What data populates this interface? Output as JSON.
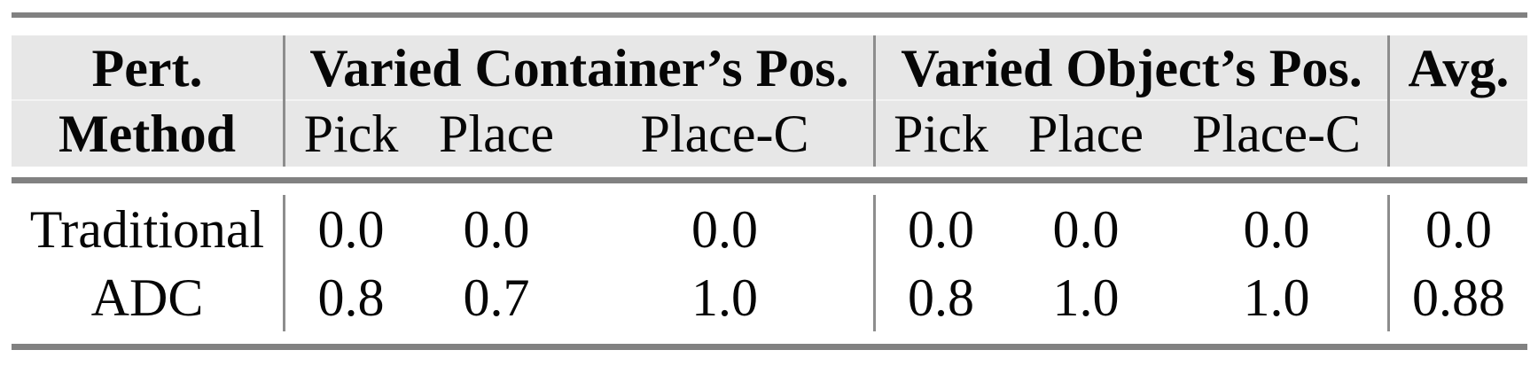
{
  "header": {
    "col1": {
      "line1": "Pert.",
      "line2": "Method"
    },
    "group1": {
      "title": "Varied Container’s Pos.",
      "subs": [
        "Pick",
        "Place",
        "Place-C"
      ]
    },
    "group2": {
      "title": "Varied Object’s Pos.",
      "subs": [
        "Pick",
        "Place",
        "Place-C"
      ]
    },
    "avg": {
      "title": "Avg."
    }
  },
  "rows": [
    {
      "method": "Traditional",
      "g1": [
        "0.0",
        "0.0",
        "0.0"
      ],
      "g2": [
        "0.0",
        "0.0",
        "0.0"
      ],
      "avg": "0.0"
    },
    {
      "method": "ADC",
      "g1": [
        "0.8",
        "0.7",
        "1.0"
      ],
      "g2": [
        "0.8",
        "1.0",
        "1.0"
      ],
      "avg": "0.88"
    }
  ],
  "colors": {
    "rule": "#818181",
    "divider": "#8d8d8d",
    "header_bg": "#e7e7e7",
    "text": "#060606"
  }
}
